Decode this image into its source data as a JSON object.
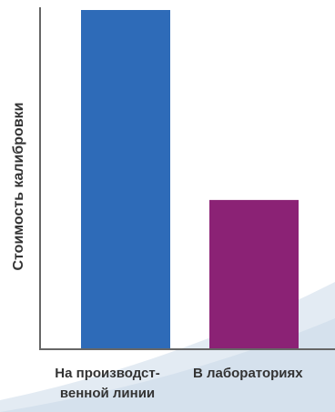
{
  "chart_data": {
    "type": "bar",
    "categories": [
      "На производст-\nвенной линии",
      "В лабораториях"
    ],
    "values": [
      100,
      44
    ],
    "title": "",
    "xlabel": "",
    "ylabel": "Стоимость калибровки",
    "ylim": [
      0,
      100
    ],
    "grid": false,
    "legend": "none",
    "colors": [
      "#2e6bb8",
      "#8b2275"
    ]
  },
  "colors": {
    "axis": "#666666",
    "text": "#333333",
    "swoosh": "#e3ebf3"
  }
}
